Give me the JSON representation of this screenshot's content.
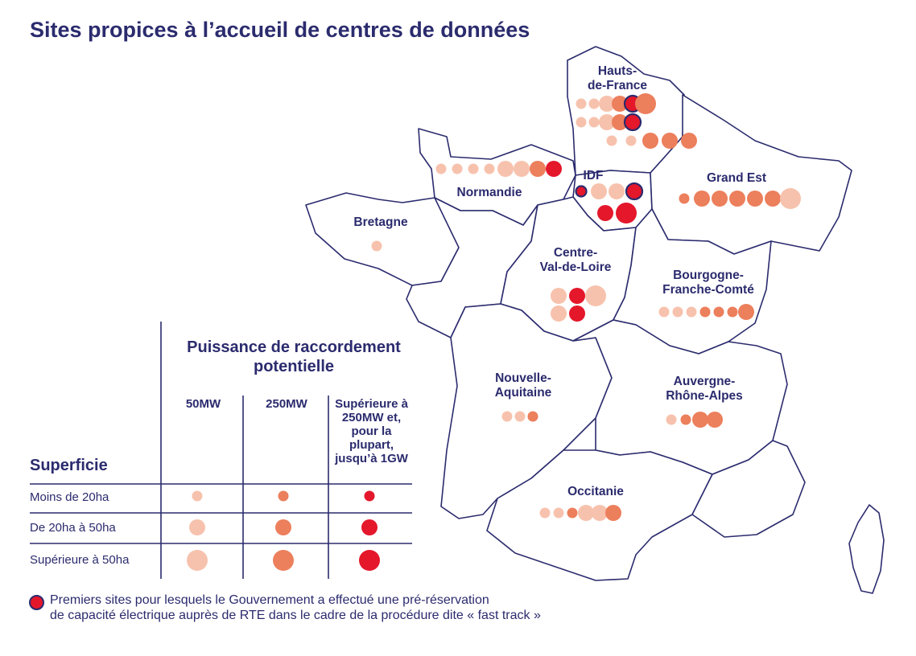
{
  "title": "Sites propices à l’accueil de centres de données",
  "colors": {
    "outline": "#2b2b6e",
    "mw50": "#f7c2ad",
    "mw250": "#ec7f5c",
    "mw_max": "#e4172b"
  },
  "regions": [
    {
      "id": "hauts-de-france",
      "label": "Hauts-\nde-France"
    },
    {
      "id": "normandie",
      "label": "Normandie"
    },
    {
      "id": "idf",
      "label": "IDF"
    },
    {
      "id": "grand-est",
      "label": "Grand Est"
    },
    {
      "id": "bretagne",
      "label": "Bretagne"
    },
    {
      "id": "centre-val-de-loire",
      "label": "Centre-\nVal-de-Loire"
    },
    {
      "id": "bourgogne-franche-comte",
      "label": "Bourgogne-\nFranche-Comté"
    },
    {
      "id": "nouvelle-aquitaine",
      "label": "Nouvelle-\nAquitaine"
    },
    {
      "id": "auvergne-rhone-alpes",
      "label": "Auvergne-\nRhône-Alpes"
    },
    {
      "id": "occitanie",
      "label": "Occitanie"
    }
  ],
  "sites": {
    "hauts-de-france": [
      [
        "50",
        "s"
      ],
      [
        "50",
        "s"
      ],
      [
        "50",
        "m"
      ],
      [
        "250",
        "m"
      ],
      [
        "max",
        "m",
        true
      ],
      [
        "250",
        "l"
      ],
      [
        "50",
        "s"
      ],
      [
        "50",
        "s"
      ],
      [
        "50",
        "m"
      ],
      [
        "250",
        "m"
      ],
      [
        "max",
        "m",
        true
      ],
      [
        "50",
        "s"
      ],
      [
        "50",
        "s"
      ],
      [
        "250",
        "m"
      ],
      [
        "250",
        "m"
      ],
      [
        "250",
        "m"
      ]
    ],
    "normandie": [
      [
        "50",
        "s"
      ],
      [
        "50",
        "s"
      ],
      [
        "50",
        "s"
      ],
      [
        "50",
        "s"
      ],
      [
        "50",
        "m"
      ],
      [
        "50",
        "m"
      ],
      [
        "250",
        "m"
      ],
      [
        "max",
        "m"
      ]
    ],
    "idf": [
      [
        "max",
        "s",
        true
      ],
      [
        "50",
        "m"
      ],
      [
        "50",
        "m"
      ],
      [
        "max",
        "m",
        true
      ],
      [
        "max",
        "m"
      ],
      [
        "max",
        "l"
      ]
    ],
    "grand-est": [
      [
        "250",
        "s"
      ],
      [
        "250",
        "m"
      ],
      [
        "250",
        "m"
      ],
      [
        "250",
        "m"
      ],
      [
        "250",
        "m"
      ],
      [
        "250",
        "m"
      ],
      [
        "50",
        "l"
      ]
    ],
    "bretagne": [
      [
        "50",
        "s"
      ]
    ],
    "centre-val-de-loire": [
      [
        "50",
        "m"
      ],
      [
        "max",
        "m"
      ],
      [
        "50",
        "l"
      ],
      [
        "50",
        "m"
      ],
      [
        "max",
        "m"
      ]
    ],
    "bourgogne-franche-comte": [
      [
        "50",
        "s"
      ],
      [
        "50",
        "s"
      ],
      [
        "50",
        "s"
      ],
      [
        "250",
        "s"
      ],
      [
        "250",
        "s"
      ],
      [
        "250",
        "s"
      ],
      [
        "250",
        "m"
      ]
    ],
    "nouvelle-aquitaine": [
      [
        "50",
        "s"
      ],
      [
        "50",
        "s"
      ],
      [
        "250",
        "s"
      ]
    ],
    "auvergne-rhone-alpes": [
      [
        "50",
        "s"
      ],
      [
        "250",
        "s"
      ],
      [
        "250",
        "m"
      ],
      [
        "250",
        "m"
      ]
    ],
    "occitanie": [
      [
        "50",
        "s"
      ],
      [
        "50",
        "s"
      ],
      [
        "250",
        "s"
      ],
      [
        "50",
        "m"
      ],
      [
        "50",
        "m"
      ],
      [
        "250",
        "m"
      ]
    ]
  },
  "legend": {
    "title": "Puissance de raccordement potentielle",
    "columns": [
      "50MW",
      "250MW",
      "Supérieure à 250MW et, pour la plupart, jusqu’à 1GW"
    ],
    "row_header": "Superficie",
    "rows": [
      "Moins de 20ha",
      "De 20ha à 50ha",
      "Supérieure à 50ha"
    ]
  },
  "footnote": "Premiers sites pour lesquels le Gouvernement a effectué une pré-réservation\nde capacité électrique auprès de RTE dans le cadre de la procédure dite « fast track »"
}
